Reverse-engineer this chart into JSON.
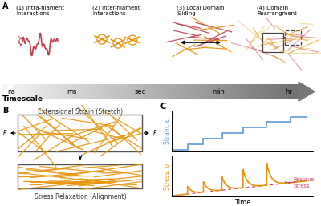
{
  "fig_width": 4.0,
  "fig_height": 2.57,
  "dpi": 100,
  "bg_color": "#ffffff",
  "titles": [
    "(1) Intra-filament\ninteractions",
    "(2) Inter-filament\ninteractions",
    "(3) Local Domain\nSliding",
    "(4) Domain\nRearrangment"
  ],
  "timescale_labels": [
    "ns",
    "ms",
    "sec",
    "min",
    "hr"
  ],
  "timescale_label": "Timescale",
  "panel_B_top_title": "Extensional Strain (Stretch)",
  "panel_B_bottom_title": "Stress Relaxation (Alignment)",
  "panel_C_top_ylabel": "Strain, ε",
  "panel_C_bottom_ylabel": "Stress, σ",
  "panel_C_xlabel": "Time",
  "residual_stress_label": "Residual\nStress",
  "strain_color": "#5b9bd5",
  "stress_color": "#e8930a",
  "residual_color": "#d04060",
  "filament_color_red": "#c04050",
  "filament_color_orange": "#e8930a",
  "filament_color_light_orange": "#f5c060"
}
